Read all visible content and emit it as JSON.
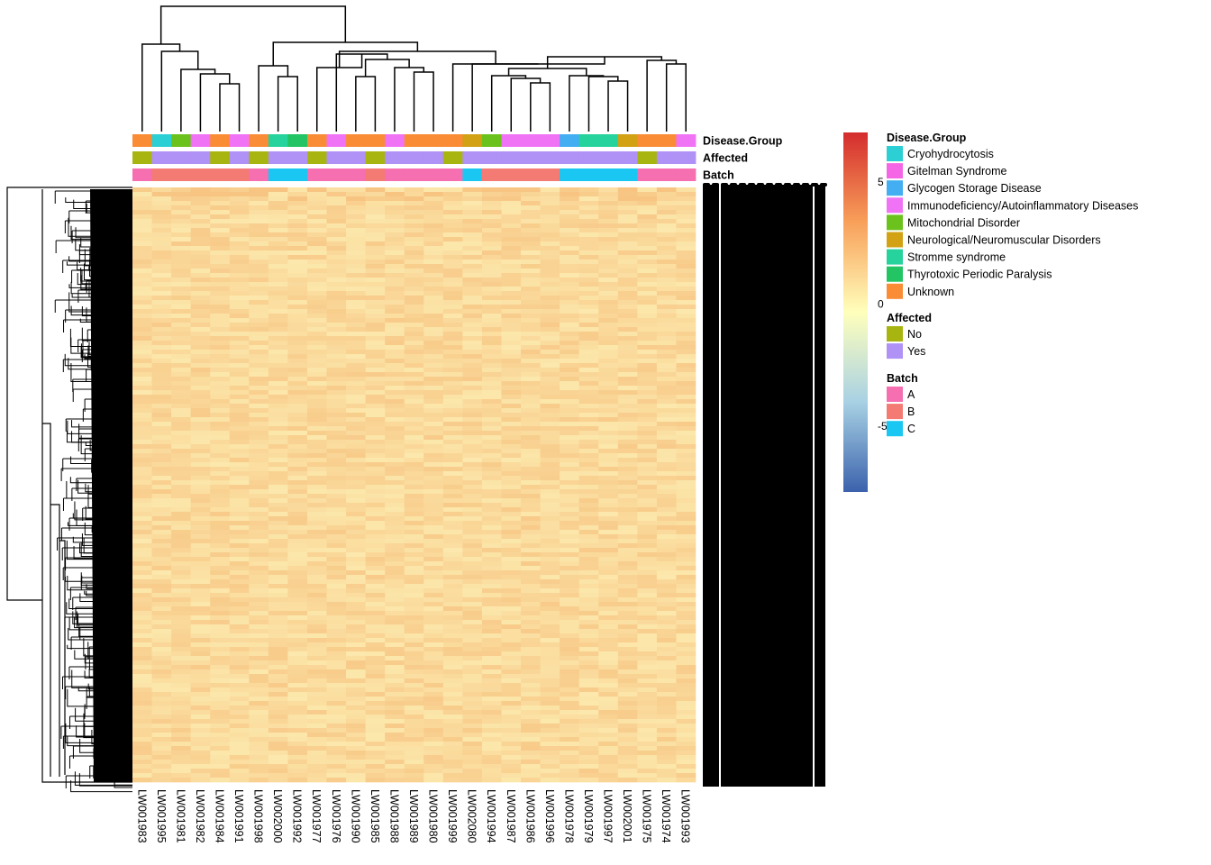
{
  "chart_data": {
    "type": "heatmap",
    "samples": [
      "LW001983",
      "LW001995",
      "LW001981",
      "LW001982",
      "LW001984",
      "LW001991",
      "LW001998",
      "LW002000",
      "LW001992",
      "LW001977",
      "LW001976",
      "LW001990",
      "LW001985",
      "LW001988",
      "LW001989",
      "LW001980",
      "LW001999",
      "LW002080",
      "LW001994",
      "LW001987",
      "LW001986",
      "LW001996",
      "LW001978",
      "LW001979",
      "LW001997",
      "LW002001",
      "LW001975",
      "LW001974",
      "LW001993"
    ],
    "annotation_tracks": [
      {
        "name": "Disease.Group",
        "key": "disease",
        "values": [
          "Unknown",
          "Cryohydrocytosis",
          "Mitochondrial Disorder",
          "Immunodeficiency/Autoinflammatory Diseases",
          "Unknown",
          "Immunodeficiency/Autoinflammatory Diseases",
          "Unknown",
          "Stromme syndrome",
          "Thyrotoxic Periodic Paralysis",
          "Unknown",
          "Immunodeficiency/Autoinflammatory Diseases",
          "Unknown",
          "Unknown",
          "Immunodeficiency/Autoinflammatory Diseases",
          "Unknown",
          "Unknown",
          "Unknown",
          "Neurological/Neuromuscular Disorders",
          "Mitochondrial Disorder",
          "Immunodeficiency/Autoinflammatory Diseases",
          "Immunodeficiency/Autoinflammatory Diseases",
          "Immunodeficiency/Autoinflammatory Diseases",
          "Glycogen Storage Disease",
          "Stromme syndrome",
          "Stromme syndrome",
          "Neurological/Neuromuscular Disorders",
          "Unknown",
          "Unknown",
          "Immunodeficiency/Autoinflammatory Diseases"
        ]
      },
      {
        "name": "Affected",
        "key": "affected",
        "values": [
          "No",
          "Yes",
          "Yes",
          "Yes",
          "No",
          "Yes",
          "No",
          "Yes",
          "Yes",
          "No",
          "Yes",
          "Yes",
          "No",
          "Yes",
          "Yes",
          "Yes",
          "No",
          "Yes",
          "Yes",
          "Yes",
          "Yes",
          "Yes",
          "Yes",
          "Yes",
          "Yes",
          "Yes",
          "No",
          "Yes",
          "Yes"
        ]
      },
      {
        "name": "Batch",
        "key": "batch",
        "values": [
          "A",
          "B",
          "B",
          "B",
          "B",
          "B",
          "A",
          "C",
          "C",
          "A",
          "A",
          "A",
          "B",
          "A",
          "A",
          "A",
          "A",
          "C",
          "B",
          "B",
          "B",
          "B",
          "C",
          "C",
          "C",
          "C",
          "A",
          "A",
          "A"
        ]
      }
    ],
    "legend": {
      "title_disease": "Disease.Group",
      "disease": [
        {
          "label": "Cryohydrocytosis",
          "color": "#2ccfd3"
        },
        {
          "label": "Gitelman Syndrome",
          "color": "#f566e6"
        },
        {
          "label": "Glycogen Storage Disease",
          "color": "#43aef2"
        },
        {
          "label": "Immunodeficiency/Autoinflammatory Diseases",
          "color": "#f173f5"
        },
        {
          "label": "Mitochondrial Disorder",
          "color": "#6cc21c"
        },
        {
          "label": "Neurological/Neuromuscular Disorders",
          "color": "#d2a114"
        },
        {
          "label": "Stromme syndrome",
          "color": "#26d39c"
        },
        {
          "label": "Thyrotoxic Periodic Paralysis",
          "color": "#22c464"
        },
        {
          "label": "Unknown",
          "color": "#fa8c35"
        }
      ],
      "title_affected": "Affected",
      "affected": [
        {
          "label": "No",
          "color": "#a8b511"
        },
        {
          "label": "Yes",
          "color": "#b091f5"
        }
      ],
      "title_batch": "Batch",
      "batch": [
        {
          "label": "A",
          "color": "#f56fb1"
        },
        {
          "label": "B",
          "color": "#f47b73"
        },
        {
          "label": "C",
          "color": "#1ac7f2"
        }
      ]
    },
    "color_scale": {
      "ticks": [
        5,
        0,
        -5
      ],
      "min": -7.7,
      "max": 7.0,
      "low_color": "#3b62ac",
      "mid_color": "#ffffbc",
      "high_color": "#d42c2d"
    },
    "cell_value_range": [
      0.5,
      2.2
    ],
    "row_labels": "overplotted (illegible)"
  }
}
